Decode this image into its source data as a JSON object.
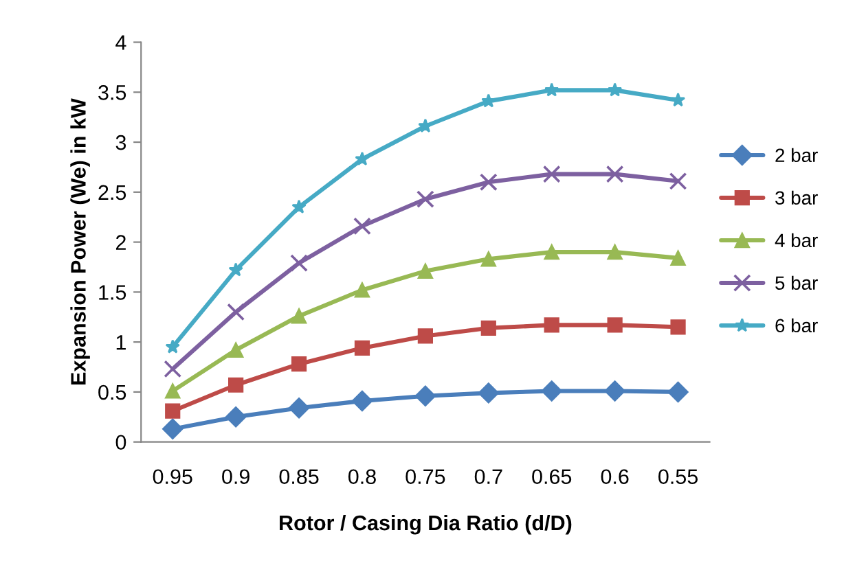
{
  "chart_data": {
    "type": "line",
    "xlabel": "Rotor / Casing Dia Ratio (d/D)",
    "ylabel": "Expansion Power (We) in kW",
    "categories": [
      "0.95",
      "0.9",
      "0.85",
      "0.8",
      "0.75",
      "0.7",
      "0.65",
      "0.6",
      "0.55"
    ],
    "ylim": [
      0,
      4
    ],
    "yticks": [
      0,
      {
        "value": 0.5,
        "label": "0.5"
      },
      1,
      {
        "value": 1.5,
        "label": "1.5"
      },
      2,
      {
        "value": 2.5,
        "label": "2.5"
      },
      3,
      {
        "value": 3.5,
        "label": "3.5"
      },
      4
    ],
    "grid": false,
    "legend": "right",
    "line_style": "solid",
    "series": [
      {
        "name": "2 bar",
        "color": "#4a7ebb",
        "marker": "diamond",
        "values": [
          0.13,
          0.25,
          0.34,
          0.41,
          0.46,
          0.49,
          0.51,
          0.51,
          0.5
        ]
      },
      {
        "name": "3 bar",
        "color": "#be4b48",
        "marker": "square",
        "values": [
          0.31,
          0.57,
          0.78,
          0.94,
          1.06,
          1.14,
          1.17,
          1.17,
          1.15
        ]
      },
      {
        "name": "4 bar",
        "color": "#98b954",
        "marker": "triangle",
        "values": [
          0.51,
          0.92,
          1.26,
          1.52,
          1.71,
          1.83,
          1.9,
          1.9,
          1.84
        ]
      },
      {
        "name": "5 bar",
        "color": "#7d60a0",
        "marker": "cross",
        "values": [
          0.73,
          1.3,
          1.79,
          2.16,
          2.43,
          2.6,
          2.68,
          2.68,
          2.61
        ]
      },
      {
        "name": "6 bar",
        "color": "#46aac5",
        "marker": "star",
        "values": [
          0.95,
          1.72,
          2.35,
          2.83,
          3.16,
          3.41,
          3.52,
          3.52,
          3.42
        ]
      }
    ]
  }
}
